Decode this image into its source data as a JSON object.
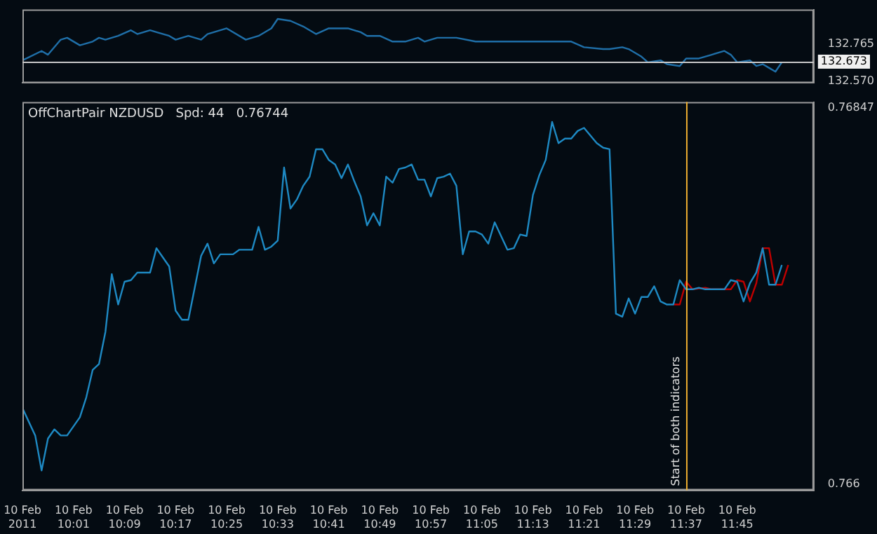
{
  "chart_data": [
    {
      "type": "line",
      "xlim": [
        "2011-02-10T09:53",
        "2011-02-10T11:57"
      ],
      "ylim": [
        132.56,
        132.95
      ],
      "yticks": [
        132.765,
        {
          "value": 132.57,
          "label": "132.570"
        }
      ],
      "tick_labels": "y",
      "grid": false,
      "legend": false,
      "marker": "none",
      "line_style": "solid",
      "ref_lines": [
        {
          "axis": "y",
          "value": 132.673,
          "label": "132.673",
          "color": "#c8c8c8"
        }
      ],
      "series": [
        {
          "color": "#1f6fa8",
          "x": [
            "2011-02-10T09:53",
            "2011-02-10T09:56",
            "2011-02-10T09:57",
            "2011-02-10T09:59",
            "2011-02-10T10:00",
            "2011-02-10T10:02",
            "2011-02-10T10:04",
            "2011-02-10T10:05",
            "2011-02-10T10:06",
            "2011-02-10T10:08",
            "2011-02-10T10:10",
            "2011-02-10T10:11",
            "2011-02-10T10:13",
            "2011-02-10T10:14",
            "2011-02-10T10:16",
            "2011-02-10T10:17",
            "2011-02-10T10:19",
            "2011-02-10T10:20",
            "2011-02-10T10:21",
            "2011-02-10T10:22",
            "2011-02-10T10:25",
            "2011-02-10T10:28",
            "2011-02-10T10:30",
            "2011-02-10T10:32",
            "2011-02-10T10:33",
            "2011-02-10T10:35",
            "2011-02-10T10:37",
            "2011-02-10T10:39",
            "2011-02-10T10:41",
            "2011-02-10T10:44",
            "2011-02-10T10:46",
            "2011-02-10T10:47",
            "2011-02-10T10:49",
            "2011-02-10T10:51",
            "2011-02-10T10:53",
            "2011-02-10T10:55",
            "2011-02-10T10:56",
            "2011-02-10T10:58",
            "2011-02-10T11:01",
            "2011-02-10T11:04",
            "2011-02-10T11:06",
            "2011-02-10T11:08",
            "2011-02-10T11:11",
            "2011-02-10T11:13",
            "2011-02-10T11:16",
            "2011-02-10T11:19",
            "2011-02-10T11:21",
            "2011-02-10T11:24",
            "2011-02-10T11:25",
            "2011-02-10T11:27",
            "2011-02-10T11:28",
            "2011-02-10T11:30",
            "2011-02-10T11:31",
            "2011-02-10T11:33",
            "2011-02-10T11:34",
            "2011-02-10T11:36",
            "2011-02-10T11:37",
            "2011-02-10T11:39",
            "2011-02-10T11:41",
            "2011-02-10T11:43",
            "2011-02-10T11:44",
            "2011-02-10T11:45",
            "2011-02-10T11:47",
            "2011-02-10T11:48",
            "2011-02-10T11:49",
            "2011-02-10T11:50",
            "2011-02-10T11:51",
            "2011-02-10T11:52"
          ],
          "values": [
            132.68,
            132.73,
            132.71,
            132.79,
            132.8,
            132.76,
            132.78,
            132.8,
            132.79,
            132.81,
            132.84,
            132.82,
            132.84,
            132.83,
            132.81,
            132.79,
            132.81,
            132.8,
            132.79,
            132.82,
            132.85,
            132.79,
            132.81,
            132.85,
            132.9,
            132.89,
            132.86,
            132.82,
            132.85,
            132.85,
            132.83,
            132.81,
            132.81,
            132.78,
            132.78,
            132.8,
            132.78,
            132.8,
            132.8,
            132.78,
            132.78,
            132.78,
            132.78,
            132.78,
            132.78,
            132.78,
            132.75,
            132.74,
            132.74,
            132.75,
            132.74,
            132.7,
            132.67,
            132.68,
            132.66,
            132.65,
            132.69,
            132.69,
            132.71,
            132.73,
            132.71,
            132.67,
            132.68,
            132.65,
            132.66,
            132.64,
            132.62,
            132.67
          ]
        }
      ]
    },
    {
      "type": "line",
      "xlim": [
        "2011-02-10T09:53",
        "2011-02-10T11:57"
      ],
      "ylim": [
        0.76596,
        0.76851
      ],
      "yticks": [
        0.76847,
        0.766
      ],
      "xticks": [
        {
          "value": "2011-02-10T09:53",
          "label": "10 Feb 2011"
        },
        {
          "value": "2011-02-10T10:01",
          "label": "10 Feb 10:01"
        },
        {
          "value": "2011-02-10T10:09",
          "label": "10 Feb 10:09"
        },
        {
          "value": "2011-02-10T10:17",
          "label": "10 Feb 10:17"
        },
        {
          "value": "2011-02-10T10:25",
          "label": "10 Feb 10:25"
        },
        {
          "value": "2011-02-10T10:33",
          "label": "10 Feb 10:33"
        },
        {
          "value": "2011-02-10T10:41",
          "label": "10 Feb 10:41"
        },
        {
          "value": "2011-02-10T10:49",
          "label": "10 Feb 10:49"
        },
        {
          "value": "2011-02-10T10:57",
          "label": "10 Feb 10:57"
        },
        {
          "value": "2011-02-10T11:05",
          "label": "10 Feb 11:05"
        },
        {
          "value": "2011-02-10T11:13",
          "label": "10 Feb 11:13"
        },
        {
          "value": "2011-02-10T11:21",
          "label": "10 Feb 11:21"
        },
        {
          "value": "2011-02-10T11:29",
          "label": "10 Feb 11:29"
        },
        {
          "value": "2011-02-10T11:37",
          "label": "10 Feb 11:37"
        },
        {
          "value": "2011-02-10T11:45",
          "label": "10 Feb 11:45"
        }
      ],
      "grid": false,
      "legend": false,
      "marker": "none",
      "line_style": "solid",
      "annotations": [
        "OffChartPair NZDUSD   Spd: 44   0.76744"
      ],
      "ref_lines": [
        {
          "axis": "x",
          "value": "2011-02-10T11:37",
          "label": "Start of both indicators",
          "color": "#f0b030"
        }
      ],
      "series": [
        {
          "color": "#1e8ac4",
          "x": [
            "2011-02-10T09:53",
            "2011-02-10T09:55",
            "2011-02-10T09:56",
            "2011-02-10T09:57",
            "2011-02-10T09:58",
            "2011-02-10T09:59",
            "2011-02-10T10:00",
            "2011-02-10T10:02",
            "2011-02-10T10:03",
            "2011-02-10T10:04",
            "2011-02-10T10:05",
            "2011-02-10T10:06",
            "2011-02-10T10:07",
            "2011-02-10T10:08",
            "2011-02-10T10:09",
            "2011-02-10T10:10",
            "2011-02-10T10:11",
            "2011-02-10T10:13",
            "2011-02-10T10:14",
            "2011-02-10T10:15",
            "2011-02-10T10:16",
            "2011-02-10T10:17",
            "2011-02-10T10:18",
            "2011-02-10T10:19",
            "2011-02-10T10:21",
            "2011-02-10T10:22",
            "2011-02-10T10:23",
            "2011-02-10T10:24",
            "2011-02-10T10:26",
            "2011-02-10T10:27",
            "2011-02-10T10:29",
            "2011-02-10T10:30",
            "2011-02-10T10:31",
            "2011-02-10T10:32",
            "2011-02-10T10:33",
            "2011-02-10T10:34",
            "2011-02-10T10:35",
            "2011-02-10T10:36",
            "2011-02-10T10:37",
            "2011-02-10T10:38",
            "2011-02-10T10:39",
            "2011-02-10T10:40",
            "2011-02-10T10:41",
            "2011-02-10T10:42",
            "2011-02-10T10:43",
            "2011-02-10T10:44",
            "2011-02-10T10:45",
            "2011-02-10T10:46",
            "2011-02-10T10:47",
            "2011-02-10T10:48",
            "2011-02-10T10:49",
            "2011-02-10T10:50",
            "2011-02-10T10:51",
            "2011-02-10T10:52",
            "2011-02-10T10:53",
            "2011-02-10T10:54",
            "2011-02-10T10:55",
            "2011-02-10T10:56",
            "2011-02-10T10:57",
            "2011-02-10T10:58",
            "2011-02-10T10:59",
            "2011-02-10T11:00",
            "2011-02-10T11:01",
            "2011-02-10T11:02",
            "2011-02-10T11:03",
            "2011-02-10T11:04",
            "2011-02-10T11:05",
            "2011-02-10T11:06",
            "2011-02-10T11:07",
            "2011-02-10T11:08",
            "2011-02-10T11:09",
            "2011-02-10T11:10",
            "2011-02-10T11:11",
            "2011-02-10T11:12",
            "2011-02-10T11:13",
            "2011-02-10T11:14",
            "2011-02-10T11:15",
            "2011-02-10T11:16",
            "2011-02-10T11:17",
            "2011-02-10T11:18",
            "2011-02-10T11:19",
            "2011-02-10T11:20",
            "2011-02-10T11:21",
            "2011-02-10T11:23",
            "2011-02-10T11:24",
            "2011-02-10T11:25",
            "2011-02-10T11:26",
            "2011-02-10T11:27",
            "2011-02-10T11:28",
            "2011-02-10T11:29",
            "2011-02-10T11:30",
            "2011-02-10T11:31",
            "2011-02-10T11:32",
            "2011-02-10T11:33",
            "2011-02-10T11:34",
            "2011-02-10T11:35",
            "2011-02-10T11:36",
            "2011-02-10T11:37",
            "2011-02-10T11:38",
            "2011-02-10T11:39",
            "2011-02-10T11:40",
            "2011-02-10T11:43",
            "2011-02-10T11:44",
            "2011-02-10T11:45",
            "2011-02-10T11:46",
            "2011-02-10T11:47",
            "2011-02-10T11:48",
            "2011-02-10T11:49",
            "2011-02-10T11:50",
            "2011-02-10T11:51",
            "2011-02-10T11:52"
          ],
          "values": [
            0.7665,
            0.76632,
            0.76609,
            0.7663,
            0.76636,
            0.76632,
            0.76632,
            0.76644,
            0.76657,
            0.76675,
            0.76679,
            0.767,
            0.76738,
            0.76718,
            0.76733,
            0.76734,
            0.76739,
            0.76739,
            0.76755,
            0.76749,
            0.76743,
            0.76714,
            0.76708,
            0.76708,
            0.7675,
            0.76758,
            0.76745,
            0.76751,
            0.76751,
            0.76754,
            0.76754,
            0.76769,
            0.76754,
            0.76756,
            0.7676,
            0.76808,
            0.76781,
            0.76787,
            0.76796,
            0.76802,
            0.7682,
            0.7682,
            0.76813,
            0.7681,
            0.76801,
            0.7681,
            0.76799,
            0.76789,
            0.7677,
            0.76778,
            0.7677,
            0.76802,
            0.76798,
            0.76807,
            0.76808,
            0.7681,
            0.768,
            0.768,
            0.76789,
            0.76801,
            0.76802,
            0.76804,
            0.76796,
            0.76751,
            0.76766,
            0.76766,
            0.76764,
            0.76758,
            0.76772,
            0.76763,
            0.76754,
            0.76755,
            0.76764,
            0.76763,
            0.7679,
            0.76803,
            0.76813,
            0.76838,
            0.76824,
            0.76827,
            0.76827,
            0.76832,
            0.76834,
            0.76824,
            0.76821,
            0.7682,
            0.76712,
            0.7671,
            0.76722,
            0.76712,
            0.76723,
            0.76723,
            0.7673,
            0.7672,
            0.76718,
            0.76718,
            0.76734,
            0.76728,
            0.76728,
            0.76729,
            0.76728,
            0.76728,
            0.76734,
            0.76733,
            0.7672,
            0.76732,
            0.76739,
            0.76755,
            0.76731,
            0.76731,
            0.76744
          ]
        },
        {
          "color": "#c00000",
          "x": [
            "2011-02-10T11:35",
            "2011-02-10T11:36",
            "2011-02-10T11:37",
            "2011-02-10T11:38",
            "2011-02-10T11:40",
            "2011-02-10T11:41",
            "2011-02-10T11:43",
            "2011-02-10T11:44",
            "2011-02-10T11:45",
            "2011-02-10T11:46",
            "2011-02-10T11:47",
            "2011-02-10T11:48",
            "2011-02-10T11:49",
            "2011-02-10T11:50",
            "2011-02-10T11:51",
            "2011-02-10T11:52",
            "2011-02-10T11:53"
          ],
          "values": [
            0.76718,
            0.76718,
            0.76733,
            0.76728,
            0.76729,
            0.76728,
            0.76728,
            0.76728,
            0.76734,
            0.76733,
            0.7672,
            0.76732,
            0.76755,
            0.76755,
            0.76731,
            0.76731,
            0.76744
          ]
        }
      ]
    }
  ]
}
